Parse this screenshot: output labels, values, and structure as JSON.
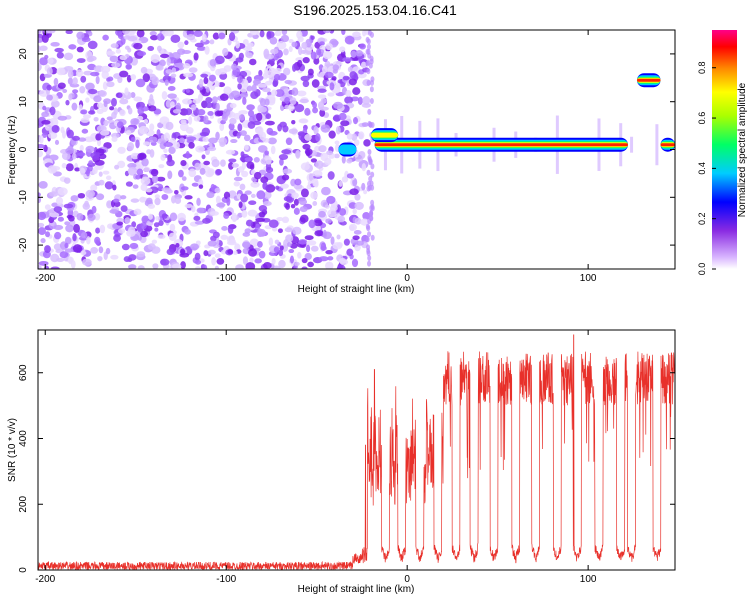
{
  "title": "S196.2025.153.04.16.C41",
  "chart_data": [
    {
      "type": "heatmap",
      "xlabel": "Height of straight line (km)",
      "ylabel": "Frequency (Hz)",
      "xlim": [
        -204,
        148
      ],
      "ylim": [
        -25,
        25
      ],
      "x_ticks": [
        -200,
        -100,
        0,
        100
      ],
      "y_ticks": [
        -20,
        -10,
        0,
        10,
        20
      ],
      "colorbar": {
        "label": "Normalized spectral amplitude",
        "ticks": [
          0.0,
          0.2,
          0.4,
          0.6,
          0.8
        ],
        "range": [
          0,
          0.95
        ],
        "colormap": "rainbow (violet-low to red/magenta-high)"
      },
      "noise_region_x": [
        -204,
        -22
      ],
      "features": [
        {
          "name": "dominant-band",
          "x_range": [
            -18,
            122
          ],
          "freq_hz": 1,
          "amplitude": 0.85
        },
        {
          "name": "onset-arc",
          "x_range": [
            -20,
            -5
          ],
          "freq_hz": 3,
          "amplitude": 0.6
        },
        {
          "name": "low-blob",
          "x_range": [
            -38,
            -28
          ],
          "freq_hz": 0,
          "amplitude": 0.35
        },
        {
          "name": "upper-band",
          "x_range": [
            127,
            140
          ],
          "freq_hz": 14.5,
          "amplitude": 0.85
        },
        {
          "name": "right-band",
          "x_range": [
            140,
            148
          ],
          "freq_hz": 1,
          "amplitude": 0.8
        }
      ],
      "colors": {
        "low": "#9b30ff",
        "mid": "#00ccff",
        "high": "#ff0033"
      }
    },
    {
      "type": "line",
      "xlabel": "Height of straight line (km)",
      "ylabel": "SNR (10 * v/v)",
      "xlim": [
        -204,
        148
      ],
      "ylim": [
        0,
        730
      ],
      "x_ticks": [
        -200,
        -100,
        0,
        100
      ],
      "y_ticks": [
        0,
        200,
        400,
        600
      ],
      "color": "#e8302a",
      "segments": [
        {
          "x_range": [
            -204,
            -30
          ],
          "baseline": 12,
          "noise_amplitude": 25
        },
        {
          "x_range": [
            -30,
            -22
          ],
          "baseline": 20,
          "peak": 70
        },
        {
          "x_range": [
            -22,
            20
          ],
          "baseline": 250,
          "peak": 610
        },
        {
          "x_range": [
            20,
            148
          ],
          "baseline": 550,
          "peak": 715,
          "periodic_dips_to": 30
        }
      ],
      "dip_positions": [
        -12,
        -3,
        7,
        17,
        27,
        37,
        48,
        60,
        71,
        83,
        94,
        106,
        118,
        124,
        138
      ],
      "notable_peaks": [
        {
          "x": -18,
          "y": 610
        },
        {
          "x": -23,
          "y": 380
        },
        {
          "x": 92,
          "y": 715
        },
        {
          "x": 146,
          "y": 660
        }
      ]
    }
  ]
}
